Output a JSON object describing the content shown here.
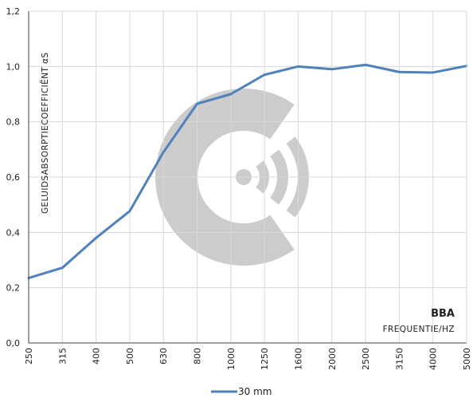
{
  "chart_data": {
    "type": "line",
    "categories": [
      "250",
      "315",
      "400",
      "500",
      "630",
      "800",
      "1000",
      "1250",
      "1600",
      "2000",
      "2500",
      "3150",
      "4000",
      "5000"
    ],
    "series": [
      {
        "name": "30 mm",
        "color": "#4f81bd",
        "values": [
          0.235,
          0.272,
          0.38,
          0.477,
          0.69,
          0.865,
          0.9,
          0.97,
          1.0,
          0.99,
          1.006,
          0.98,
          0.978,
          1.002
        ]
      }
    ],
    "y_ticks": [
      "0,0",
      "0,2",
      "0,4",
      "0,6",
      "0,8",
      "1,0",
      "1,2"
    ],
    "ylim": [
      0,
      1.2
    ],
    "ylabel": "GELUIDSABSORPTIECOEFFICIËNT αS",
    "xlabel": "FREQUENTIE/HZ",
    "brand_label": "BBA",
    "grid": true,
    "legend_position": "bottom-center",
    "watermark": "sound-logo-icon",
    "colors": {
      "line": "#4f81bd",
      "grid": "#d9d9d9",
      "axis": "#404040",
      "watermark": "#cccccc"
    }
  }
}
